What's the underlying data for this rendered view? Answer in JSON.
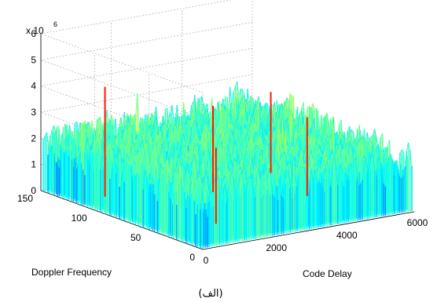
{
  "chart_data": {
    "type": "surface3d",
    "title": "",
    "caption": "(الف)",
    "xlabel": "Code Delay",
    "ylabel": "Doppler Frequency",
    "zlabel": "",
    "xlim": [
      0,
      6000
    ],
    "ylim": [
      0,
      150
    ],
    "zlim": [
      0,
      6
    ],
    "z_multiplier": "x 10",
    "z_multiplier_exponent": "6",
    "x_ticks": [
      "0",
      "2000",
      "4000",
      "6000"
    ],
    "y_ticks": [
      "0",
      "50",
      "100",
      "150"
    ],
    "z_ticks": [
      "0",
      "1",
      "2",
      "3",
      "4",
      "5",
      "6"
    ],
    "grid": true,
    "colormap": "jet",
    "surface_summary": {
      "typical_peak_range": [
        1.5,
        3.0
      ],
      "max_peak": 4.2,
      "note": "noise-like correlation surface with many narrow spikes"
    }
  }
}
